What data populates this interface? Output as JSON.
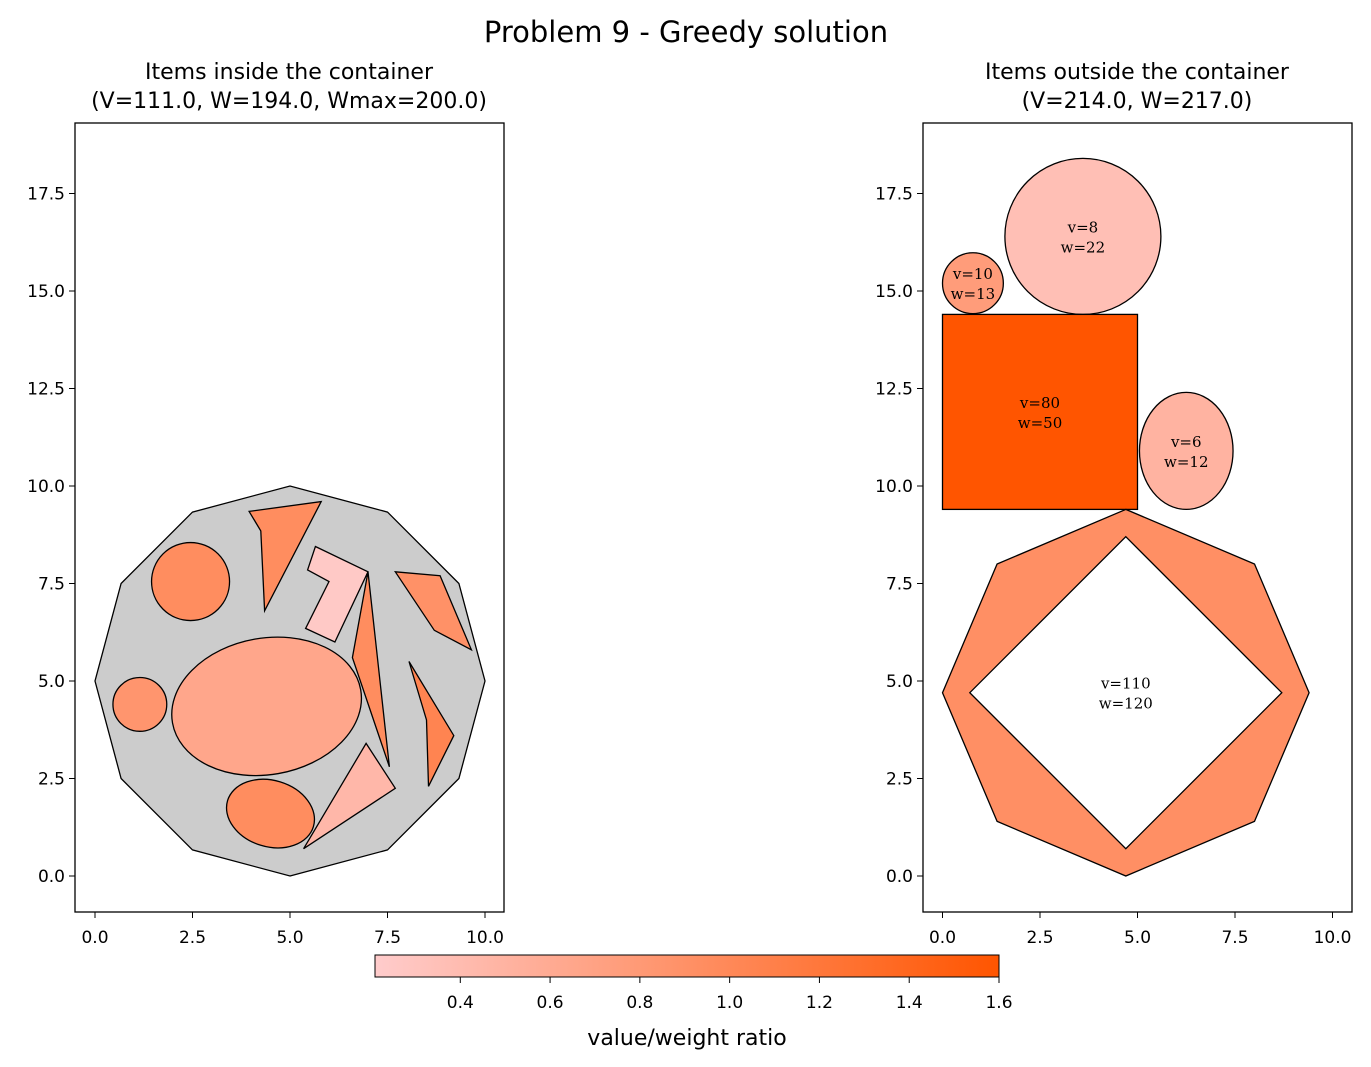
{
  "title": "Problem 9 - Greedy solution",
  "colors": {
    "container_fill": "#cccccc",
    "edge": "#000000",
    "hole_fill": "#ffffff",
    "cmap_low": "#ffcccc",
    "cmap_high": "#ff5500"
  },
  "chart_data": [
    {
      "type": "scatter",
      "panel": "left",
      "title_line1": "Items inside the container",
      "title_line2": "(V=111.0, W=194.0, Wmax=200.0)",
      "xticks": [
        "0.0",
        "2.5",
        "5.0",
        "7.5",
        "10.0"
      ],
      "yticks": [
        "0.0",
        "2.5",
        "5.0",
        "7.5",
        "10.0",
        "12.5",
        "15.0",
        "17.5"
      ],
      "xlim": [
        -0.5,
        10.5
      ],
      "ylim": [
        -0.9,
        19.2
      ],
      "grid": false,
      "container": {
        "shape": "polygon",
        "points": [
          [
            5.0,
            0.0
          ],
          [
            7.5,
            0.67
          ],
          [
            9.33,
            2.5
          ],
          [
            10.0,
            5.0
          ],
          [
            9.33,
            7.5
          ],
          [
            7.5,
            9.33
          ],
          [
            5.0,
            10.0
          ],
          [
            2.5,
            9.33
          ],
          [
            0.67,
            7.5
          ],
          [
            0.0,
            5.0
          ],
          [
            0.67,
            2.5
          ],
          [
            2.5,
            0.67
          ]
        ]
      },
      "items": [
        {
          "shape": "circle",
          "cx": 2.45,
          "cy": 7.55,
          "r": 1.0,
          "ratio": 0.95
        },
        {
          "shape": "circle",
          "cx": 1.15,
          "cy": 4.4,
          "r": 0.69,
          "ratio": 0.85
        },
        {
          "shape": "ellipse",
          "cx": 4.4,
          "cy": 4.35,
          "rx": 2.45,
          "ry": 1.75,
          "angle": -10,
          "ratio": 0.65
        },
        {
          "shape": "ellipse",
          "cx": 4.5,
          "cy": 1.6,
          "rx": 1.15,
          "ry": 0.85,
          "angle": 17,
          "ratio": 0.95
        },
        {
          "shape": "polygon",
          "points": [
            [
              3.95,
              9.35
            ],
            [
              5.8,
              9.6
            ],
            [
              4.35,
              6.8
            ],
            [
              4.25,
              8.85
            ]
          ],
          "ratio": 0.95
        },
        {
          "shape": "polygon",
          "points": [
            [
              5.65,
              8.45
            ],
            [
              7.0,
              7.8
            ],
            [
              6.15,
              6.0
            ],
            [
              5.4,
              6.35
            ],
            [
              6.0,
              7.55
            ],
            [
              5.45,
              7.85
            ]
          ],
          "ratio": 0.25
        },
        {
          "shape": "polygon",
          "points": [
            [
              7.0,
              7.8
            ],
            [
              7.55,
              2.8
            ],
            [
              6.6,
              5.6
            ]
          ],
          "ratio": 0.95
        },
        {
          "shape": "polygon",
          "points": [
            [
              7.7,
              7.8
            ],
            [
              8.85,
              7.7
            ],
            [
              9.65,
              5.8
            ],
            [
              8.7,
              6.3
            ]
          ],
          "ratio": 0.9
        },
        {
          "shape": "polygon",
          "points": [
            [
              8.05,
              5.5
            ],
            [
              9.2,
              3.6
            ],
            [
              8.55,
              2.3
            ],
            [
              8.5,
              4.0
            ]
          ],
          "ratio": 1.05
        },
        {
          "shape": "polygon",
          "points": [
            [
              6.95,
              3.4
            ],
            [
              7.7,
              2.25
            ],
            [
              5.35,
              0.7
            ]
          ],
          "ratio": 0.45
        }
      ]
    },
    {
      "type": "scatter",
      "panel": "right",
      "title_line1": "Items outside the container",
      "title_line2": "(V=214.0, W=217.0)",
      "xticks": [
        "0.0",
        "2.5",
        "5.0",
        "7.5",
        "10.0"
      ],
      "yticks": [
        "0.0",
        "2.5",
        "5.0",
        "7.5",
        "10.0",
        "12.5",
        "15.0",
        "17.5"
      ],
      "xlim": [
        -0.5,
        10.5
      ],
      "ylim": [
        -0.9,
        19.2
      ],
      "grid": false,
      "items": [
        {
          "shape": "circle",
          "cx": 3.6,
          "cy": 16.4,
          "r": 2.0,
          "ratio": 0.364,
          "label_v": "v=8",
          "label_w": "w=22",
          "lx": 3.6,
          "ly": 16.4
        },
        {
          "shape": "circle",
          "cx": 0.78,
          "cy": 15.2,
          "r": 0.78,
          "ratio": 0.77,
          "label_v": "v=10",
          "label_w": "w=13",
          "lx": 0.78,
          "ly": 15.2
        },
        {
          "shape": "rect",
          "x0": 0.0,
          "y0": 9.4,
          "x1": 5.0,
          "y1": 14.4,
          "ratio": 1.6,
          "label_v": "v=80",
          "label_w": "w=50",
          "lx": 2.5,
          "ly": 11.9
        },
        {
          "shape": "ellipse",
          "cx": 6.25,
          "cy": 10.9,
          "rx": 1.2,
          "ry": 1.5,
          "angle": 0,
          "ratio": 0.5,
          "label_v": "v=6",
          "label_w": "w=12",
          "lx": 6.25,
          "ly": 10.9
        },
        {
          "shape": "polygon_hole",
          "points": [
            [
              4.7,
              9.4
            ],
            [
              8.0,
              8.0
            ],
            [
              9.4,
              4.7
            ],
            [
              8.0,
              1.4
            ],
            [
              4.7,
              0.0
            ],
            [
              1.4,
              1.4
            ],
            [
              0.0,
              4.7
            ],
            [
              1.4,
              8.0
            ]
          ],
          "hole": [
            [
              4.7,
              8.7
            ],
            [
              8.7,
              4.7
            ],
            [
              4.7,
              0.7
            ],
            [
              0.7,
              4.7
            ]
          ],
          "ratio": 0.917,
          "label_v": "v=110",
          "label_w": "w=120",
          "lx": 4.7,
          "ly": 4.7
        }
      ]
    },
    {
      "type": "heatmap",
      "panel": "colorbar",
      "label": "value/weight ratio",
      "range": [
        0.21,
        1.6
      ],
      "ticks": [
        "0.4",
        "0.6",
        "0.8",
        "1.0",
        "1.2",
        "1.4",
        "1.6"
      ],
      "tick_values": [
        0.4,
        0.6,
        0.8,
        1.0,
        1.2,
        1.4,
        1.6
      ]
    }
  ]
}
